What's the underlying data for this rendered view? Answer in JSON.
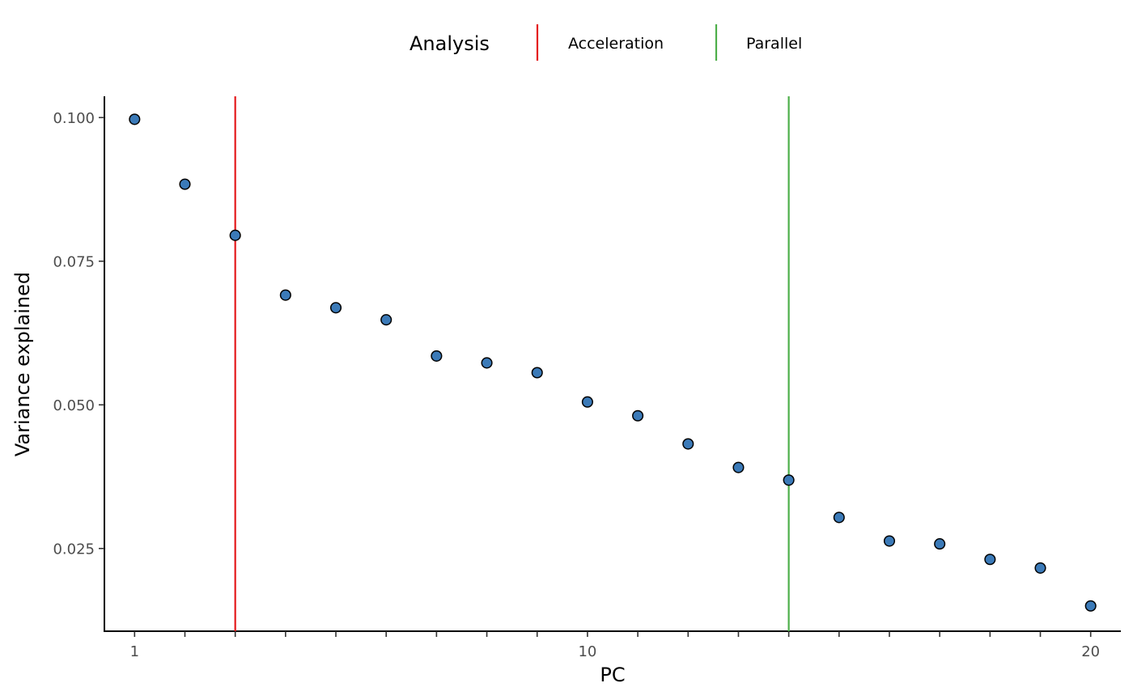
{
  "chart_data": {
    "type": "scatter",
    "xlabel": "PC",
    "ylabel": "Variance explained",
    "xlim": [
      0.4,
      20.6
    ],
    "ylim": [
      0.0106,
      0.1037
    ],
    "x_ticks": [
      1,
      2,
      3,
      4,
      5,
      6,
      7,
      8,
      9,
      10,
      11,
      12,
      13,
      14,
      15,
      16,
      17,
      18,
      19,
      20
    ],
    "x_tick_labels": [
      "1",
      "",
      "",
      "",
      "",
      "",
      "",
      "",
      "",
      "10",
      "",
      "",
      "",
      "",
      "",
      "",
      "",
      "",
      "",
      "20"
    ],
    "y_ticks": [
      0.025,
      0.05,
      0.075,
      0.1
    ],
    "y_tick_labels": [
      "0.025",
      "0.050",
      "0.075",
      "0.100"
    ],
    "grid": false,
    "point_fill": "#3b7ab8",
    "point_stroke": "#000000",
    "series": [
      {
        "x": [
          1,
          2,
          3,
          4,
          5,
          6,
          7,
          8,
          9,
          10,
          11,
          12,
          13,
          14,
          15,
          16,
          17,
          18,
          19,
          20
        ],
        "y": [
          0.0997,
          0.0884,
          0.0795,
          0.0691,
          0.0669,
          0.0648,
          0.0585,
          0.0573,
          0.0556,
          0.0505,
          0.0481,
          0.0432,
          0.0391,
          0.0369,
          0.0304,
          0.0263,
          0.0258,
          0.0231,
          0.0216,
          0.015
        ]
      }
    ],
    "vlines": [
      {
        "name": "Acceleration",
        "x": 3,
        "color": "#e41a1c"
      },
      {
        "name": "Parallel",
        "x": 14,
        "color": "#4daf4a"
      }
    ],
    "legend": {
      "title": "Analysis",
      "position": "top",
      "entries": [
        {
          "label": "Acceleration",
          "color": "#e41a1c"
        },
        {
          "label": "Parallel",
          "color": "#4daf4a"
        }
      ]
    }
  }
}
